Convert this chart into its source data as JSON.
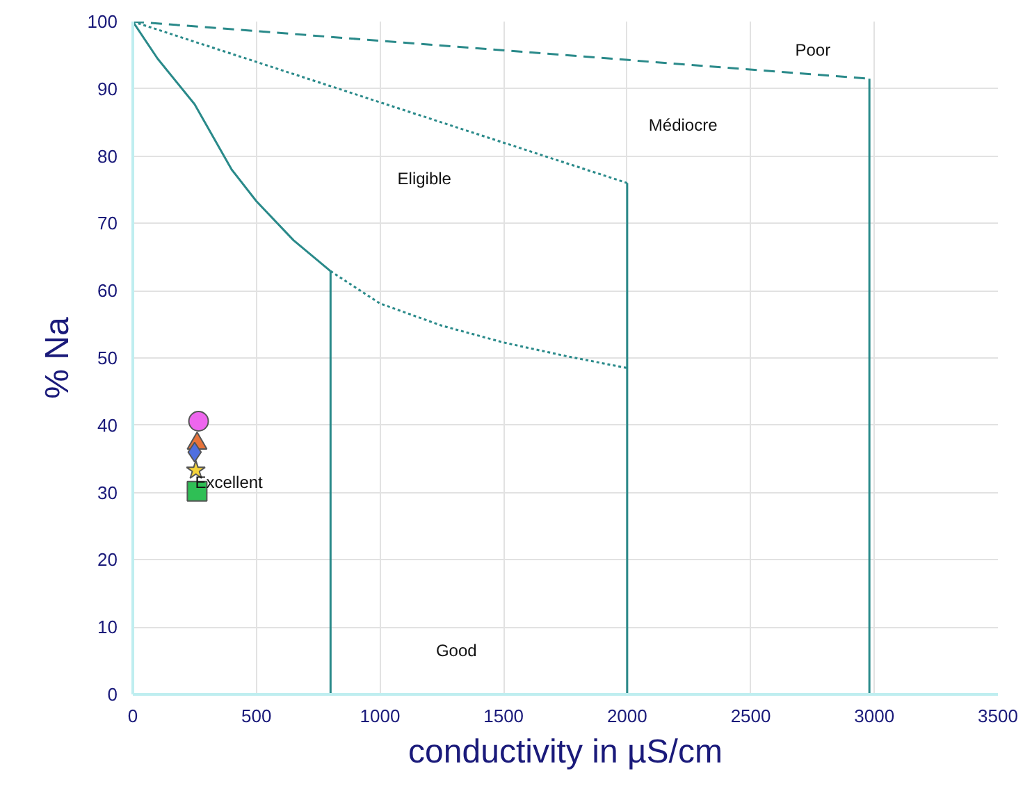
{
  "chart_data": {
    "type": "line",
    "xlabel": "conductivity in µS/cm",
    "ylabel": "% Na",
    "xlim": [
      0,
      3500
    ],
    "ylim": [
      0,
      100
    ],
    "xticks": [
      0,
      500,
      1000,
      1500,
      2000,
      2500,
      3000,
      3500
    ],
    "yticks": [
      0,
      10,
      20,
      30,
      40,
      50,
      60,
      70,
      80,
      90,
      100
    ],
    "grid": true,
    "series": [
      {
        "color": "#2a8a8a",
        "line_style": "solid",
        "x": [
          0,
          100,
          250,
          400,
          500,
          650,
          800
        ],
        "values": [
          100,
          94.5,
          87.7,
          78,
          73.3,
          67.5,
          62.9
        ]
      },
      {
        "color": "#2a8a8a",
        "line_style": "dotted",
        "x": [
          800,
          1000,
          1250,
          1500,
          1750,
          2000
        ],
        "values": [
          62.9,
          58.1,
          54.8,
          52.3,
          50.3,
          48.5
        ]
      },
      {
        "color": "#2a8a8a",
        "line_style": "dotted",
        "x": [
          0,
          2000
        ],
        "values": [
          100,
          76
        ]
      },
      {
        "color": "#2a8a8a",
        "line_style": "dashed",
        "x": [
          0,
          2980
        ],
        "values": [
          100,
          91.5
        ]
      },
      {
        "color": "#2a8a8a",
        "line_style": "solid",
        "x": [
          800,
          800
        ],
        "values": [
          0,
          62.9
        ]
      },
      {
        "color": "#2a8a8a",
        "line_style": "solid",
        "x": [
          2000,
          2000
        ],
        "values": [
          0,
          76
        ]
      },
      {
        "color": "#2a8a8a",
        "line_style": "solid",
        "x": [
          2980,
          2980
        ],
        "values": [
          0,
          91.5
        ]
      },
      {
        "type": "scatter",
        "marker": "circle",
        "color": "#ee66ee",
        "x": [
          266
        ],
        "values": [
          40.6
        ]
      },
      {
        "type": "scatter",
        "marker": "triangle",
        "color": "#e8743b",
        "x": [
          260
        ],
        "values": [
          37.3
        ]
      },
      {
        "type": "scatter",
        "marker": "diamond",
        "color": "#4f6fe0",
        "x": [
          250
        ],
        "values": [
          36
        ]
      },
      {
        "type": "scatter",
        "marker": "star",
        "color": "#f5d33a",
        "x": [
          255
        ],
        "values": [
          33.3
        ]
      },
      {
        "type": "scatter",
        "marker": "square",
        "color": "#2fbf55",
        "x": [
          260
        ],
        "values": [
          30.2
        ]
      }
    ],
    "annotations": [
      "Poor",
      "Médiocre",
      "Eligible",
      "Excellent",
      "Good"
    ]
  }
}
